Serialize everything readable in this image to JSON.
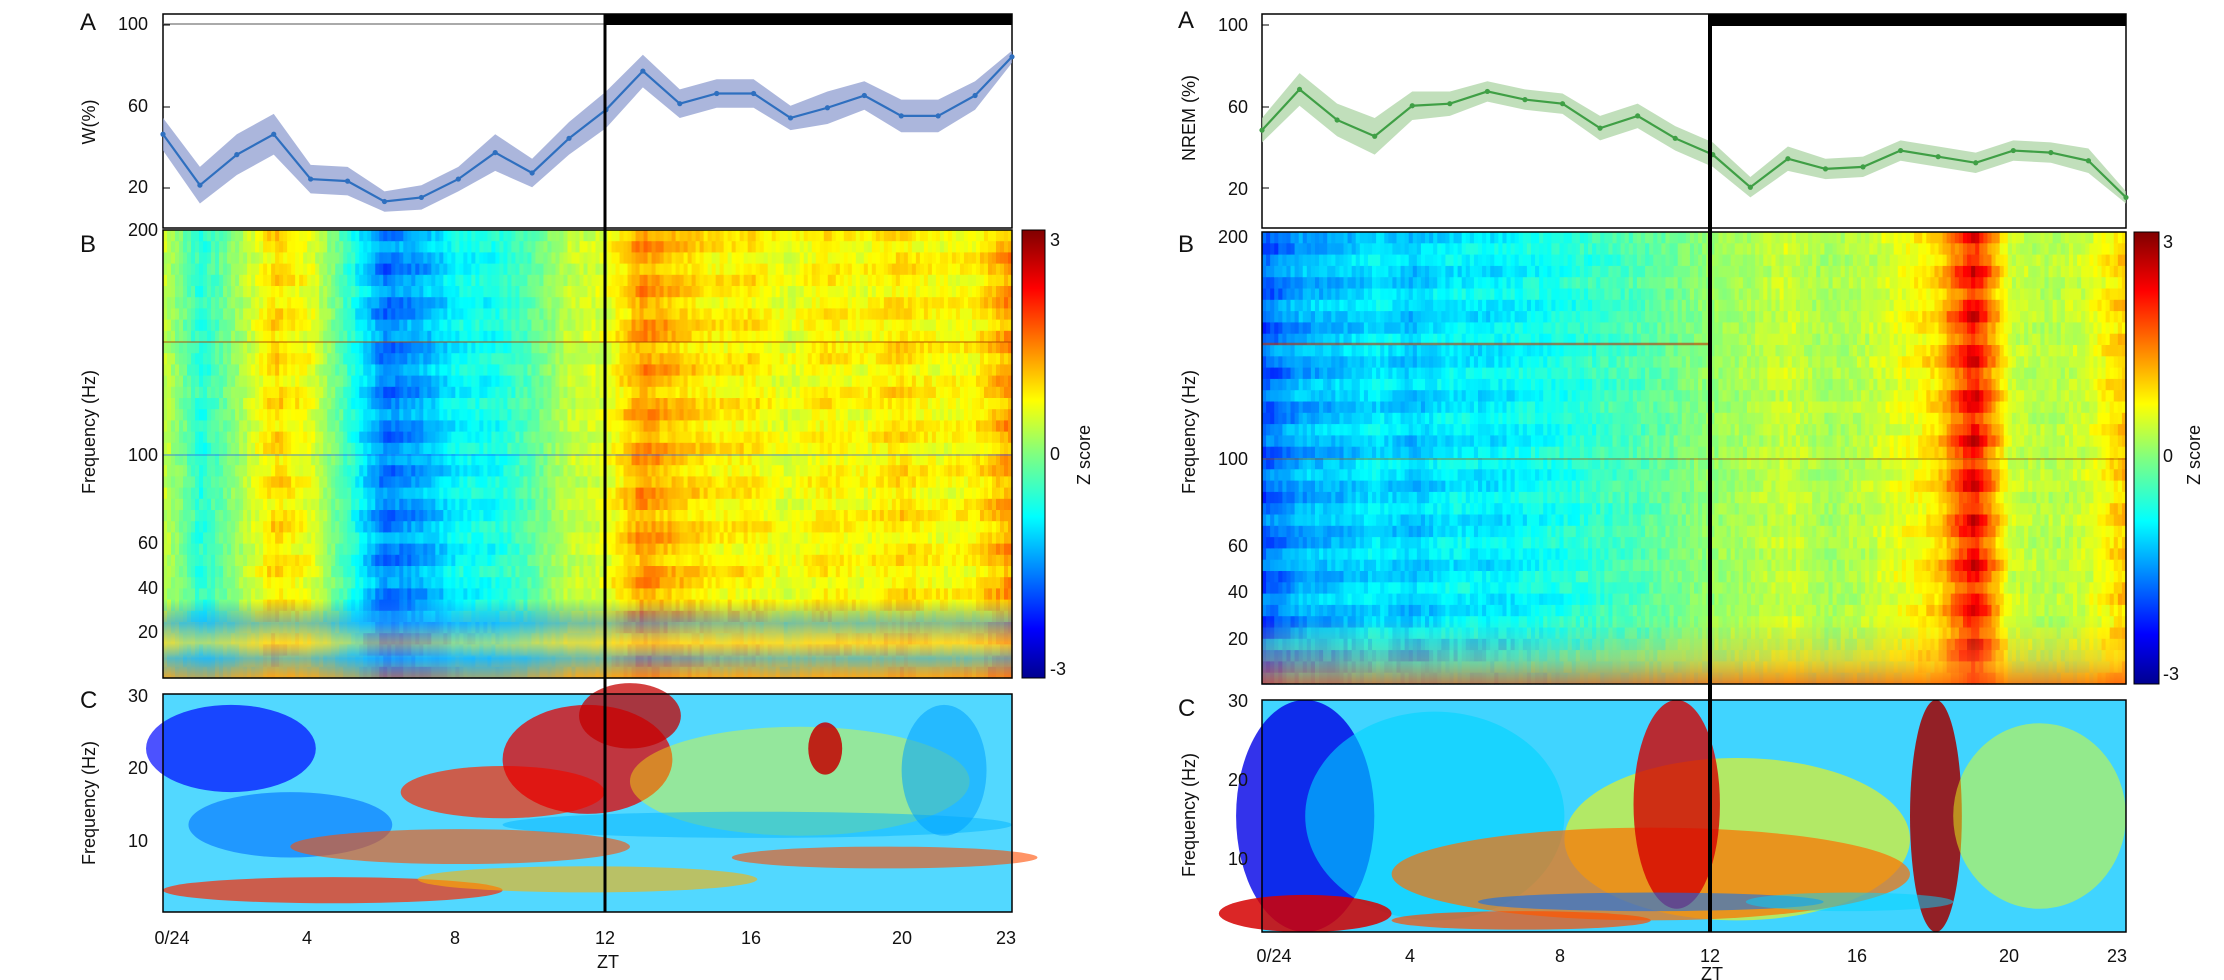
{
  "chart_data": [
    {
      "panel": "left-A",
      "type": "line",
      "panel_label": "A",
      "ylabel": "W(%)",
      "yticks": [
        "100",
        "60",
        "20"
      ],
      "ylim": [
        0,
        105
      ],
      "x": [
        0,
        1,
        2,
        3,
        4,
        5,
        6,
        7,
        8,
        9,
        10,
        11,
        12,
        13,
        14,
        15,
        16,
        17,
        18,
        19,
        20,
        21,
        22,
        23
      ],
      "series": [
        {
          "values": [
            46,
            21,
            36,
            46,
            24,
            23,
            13,
            15,
            24,
            37,
            27,
            44,
            58,
            77,
            61,
            66,
            66,
            54,
            59,
            65,
            55,
            55,
            65,
            84
          ],
          "band": [
            8,
            9,
            10,
            10,
            7,
            7,
            5,
            6,
            6,
            9,
            7,
            8,
            9,
            8,
            7,
            7,
            7,
            6,
            8,
            7,
            8,
            8,
            7,
            3
          ],
          "color": "#2e6fbf",
          "band_color": "#8f9dd0"
        }
      ],
      "dark_phase_bar_color": "#000000"
    },
    {
      "panel": "left-B",
      "type": "heatmap",
      "panel_label": "B",
      "ylabel": "Frequency (Hz)",
      "yticks": [
        "200",
        "100",
        "60",
        "40",
        "20"
      ],
      "colorbar": {
        "label": "Z score",
        "ticks": [
          "3",
          "0",
          "-3"
        ],
        "range": [
          -3,
          3
        ]
      },
      "profile": [
        0.45,
        -0.65,
        0.2,
        1.15,
        0.7,
        -0.55,
        -1.8,
        -1.45,
        -0.85,
        -0.75,
        -0.25,
        0.45,
        0.65,
        1.6,
        1.25,
        0.95,
        1.0,
        0.65,
        1.0,
        0.8,
        1.1,
        0.85,
        0.9,
        1.55
      ]
    },
    {
      "panel": "left-C",
      "type": "heatmap",
      "panel_label": "C",
      "ylabel": "Frequency (Hz)",
      "yticks": [
        "30",
        "20",
        "10"
      ],
      "xticks": [
        "0/24",
        "4",
        "8",
        "12",
        "16",
        "20",
        "23"
      ],
      "xlabel": "ZT"
    },
    {
      "panel": "right-A",
      "type": "line",
      "panel_label": "A",
      "ylabel": "NREM (%)",
      "yticks": [
        "100",
        "60",
        "20"
      ],
      "ylim": [
        0,
        105
      ],
      "x": [
        0,
        1,
        2,
        3,
        4,
        5,
        6,
        7,
        8,
        9,
        10,
        11,
        12,
        13,
        14,
        15,
        16,
        17,
        18,
        19,
        20,
        21,
        22,
        23
      ],
      "series": [
        {
          "values": [
            48,
            68,
            53,
            45,
            60,
            61,
            67,
            63,
            61,
            49,
            55,
            44,
            36,
            20,
            34,
            29,
            30,
            38,
            35,
            32,
            38,
            37,
            33,
            15
          ],
          "band": [
            6,
            8,
            8,
            9,
            7,
            6,
            5,
            5,
            5,
            6,
            6,
            6,
            6,
            5,
            6,
            5,
            5,
            5,
            5,
            5,
            5,
            5,
            6,
            3
          ],
          "color": "#3f9f45",
          "band_color": "#acd4a4"
        }
      ],
      "dark_phase_bar_color": "#000000"
    },
    {
      "panel": "right-B",
      "type": "heatmap",
      "panel_label": "B",
      "ylabel": "Frequency (Hz)",
      "yticks": [
        "200",
        "100",
        "60",
        "40",
        "20"
      ],
      "colorbar": {
        "label": "Z score",
        "ticks": [
          "3",
          "0",
          "-3"
        ],
        "range": [
          -3,
          3
        ]
      },
      "profile": [
        -2.0,
        -1.4,
        -1.3,
        -1.0,
        -1.25,
        -0.95,
        -1.0,
        -0.85,
        -0.7,
        -0.5,
        -0.35,
        -0.1,
        0.15,
        0.3,
        0.55,
        0.25,
        0.4,
        0.7,
        1.1,
        2.7,
        0.5,
        0.35,
        0.55,
        1.25
      ]
    },
    {
      "panel": "right-C",
      "type": "heatmap",
      "panel_label": "C",
      "ylabel": "Frequency (Hz)",
      "yticks": [
        "30",
        "20",
        "10"
      ],
      "xticks": [
        "0/24",
        "4",
        "8",
        "12",
        "16",
        "20",
        "23"
      ],
      "xlabel": "ZT"
    }
  ]
}
